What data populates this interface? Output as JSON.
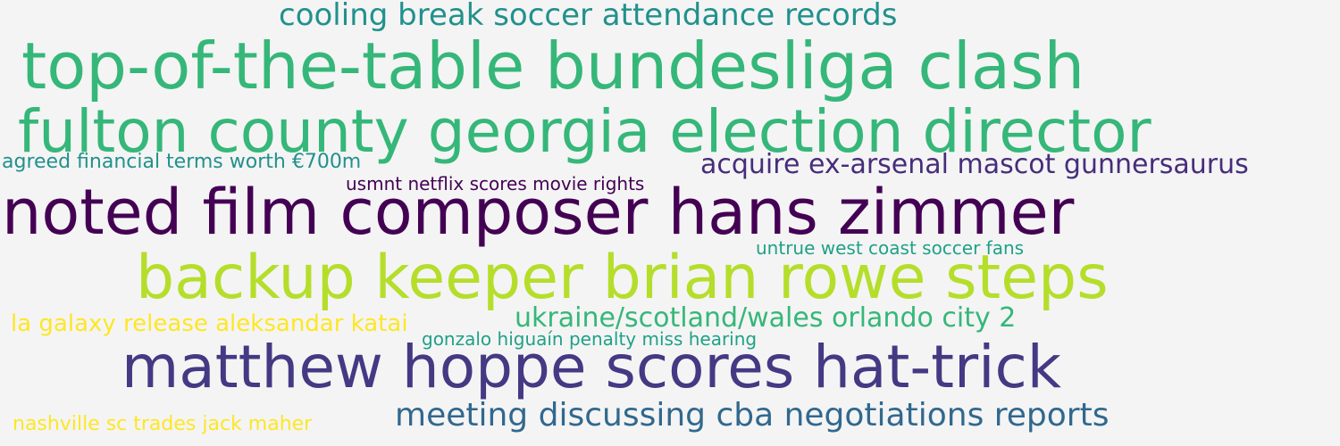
{
  "words": [
    {
      "text": "cooling break soccer attendance records",
      "color": "#21918c"
    },
    {
      "text": "top-of-the-table bundesliga clash",
      "color": "#35b779"
    },
    {
      "text": "fulton county georgia election director",
      "color": "#35b779"
    },
    {
      "text": "agreed financial terms worth €700m",
      "color": "#21918c"
    },
    {
      "text": "acquire ex-arsenal mascot gunnersaurus",
      "color": "#472d7b"
    },
    {
      "text": "usmnt netflix scores movie rights",
      "color": "#440154"
    },
    {
      "text": "noted film composer hans zimmer",
      "color": "#440154"
    },
    {
      "text": "untrue west coast soccer fans",
      "color": "#1fa187"
    },
    {
      "text": "backup keeper brian rowe steps",
      "color": "#b5de2b"
    },
    {
      "text": "la galaxy release aleksandar katai",
      "color": "#fde725"
    },
    {
      "text": "ukraine/scotland/wales orlando city 2",
      "color": "#35b779"
    },
    {
      "text": "gonzalo higuaín penalty miss hearing",
      "color": "#1fa187"
    },
    {
      "text": "matthew hoppe scores hat-trick",
      "color": "#443983"
    },
    {
      "text": "nashville sc trades jack maher",
      "color": "#fde725"
    },
    {
      "text": "meeting discussing cba negotiations reports",
      "color": "#31688e"
    }
  ]
}
